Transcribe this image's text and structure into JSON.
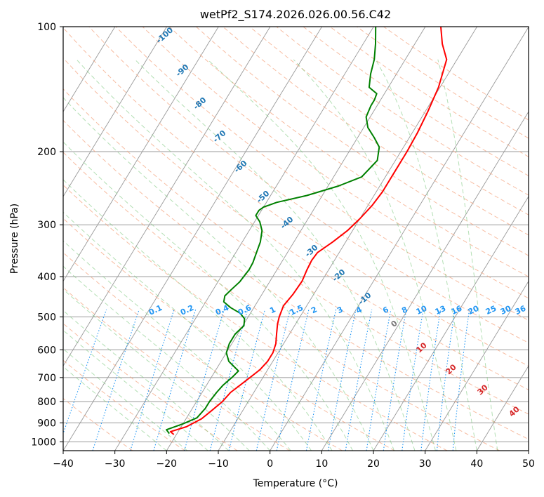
{
  "chart_data": {
    "type": "line",
    "title": "wetPf2_S174.2026.026.00.56.C42",
    "xlabel": "Temperature (°C)",
    "ylabel": "Pressure (hPa)",
    "xlim": [
      -40,
      50
    ],
    "ylim": [
      1050,
      100
    ],
    "x_ticks": [
      -40,
      -30,
      -20,
      -10,
      0,
      10,
      20,
      30,
      40,
      50
    ],
    "y_ticks": [
      100,
      200,
      300,
      400,
      500,
      600,
      700,
      800,
      900,
      1000
    ],
    "skew_per_decade": 49,
    "series": [
      {
        "name": "Temperature",
        "color": "#ff0000",
        "points": [
          [
            -20.5,
            960
          ],
          [
            -21.5,
            945
          ],
          [
            -19,
            920
          ],
          [
            -17,
            880
          ],
          [
            -16,
            840
          ],
          [
            -15,
            800
          ],
          [
            -14.5,
            760
          ],
          [
            -13.5,
            730
          ],
          [
            -12.5,
            700
          ],
          [
            -11.5,
            670
          ],
          [
            -11,
            640
          ],
          [
            -11,
            610
          ],
          [
            -11.5,
            580
          ],
          [
            -12.5,
            550
          ],
          [
            -13.5,
            520
          ],
          [
            -14,
            500
          ],
          [
            -14.5,
            470
          ],
          [
            -14,
            440
          ],
          [
            -13.8,
            410
          ],
          [
            -14.2,
            385
          ],
          [
            -14.4,
            365
          ],
          [
            -14.2,
            350
          ],
          [
            -12.5,
            330
          ],
          [
            -11,
            310
          ],
          [
            -10,
            290
          ],
          [
            -9.2,
            270
          ],
          [
            -8.8,
            250
          ],
          [
            -8.8,
            225
          ],
          [
            -8.8,
            200
          ],
          [
            -9,
            180
          ],
          [
            -9.5,
            160
          ],
          [
            -10.3,
            140
          ],
          [
            -12,
            120
          ],
          [
            -14.7,
            110
          ],
          [
            -17,
            100
          ]
        ]
      },
      {
        "name": "Dewpoint",
        "color": "#008000",
        "points": [
          [
            -21.5,
            955
          ],
          [
            -22.5,
            935
          ],
          [
            -20,
            905
          ],
          [
            -18,
            875
          ],
          [
            -17.5,
            830
          ],
          [
            -17.5,
            800
          ],
          [
            -17.2,
            760
          ],
          [
            -16.8,
            730
          ],
          [
            -16,
            700
          ],
          [
            -15.5,
            675
          ],
          [
            -18.5,
            640
          ],
          [
            -20,
            610
          ],
          [
            -20.5,
            580
          ],
          [
            -20.5,
            550
          ],
          [
            -19.8,
            525
          ],
          [
            -20.5,
            505
          ],
          [
            -22,
            490
          ],
          [
            -24.5,
            475
          ],
          [
            -26.5,
            460
          ],
          [
            -27,
            445
          ],
          [
            -26.5,
            430
          ],
          [
            -25.8,
            412
          ],
          [
            -25.6,
            398
          ],
          [
            -25.4,
            385
          ],
          [
            -25.5,
            370
          ],
          [
            -26,
            350
          ],
          [
            -26.5,
            330
          ],
          [
            -27.5,
            310
          ],
          [
            -29,
            295
          ],
          [
            -30.5,
            285
          ],
          [
            -30.5,
            277
          ],
          [
            -30,
            272
          ],
          [
            -28,
            265
          ],
          [
            -23,
            255
          ],
          [
            -18,
            242
          ],
          [
            -14.6,
            230
          ],
          [
            -13.5,
            210
          ],
          [
            -14.7,
            195
          ],
          [
            -16.8,
            185
          ],
          [
            -19.2,
            175
          ],
          [
            -20.8,
            165
          ],
          [
            -21.2,
            155
          ],
          [
            -21.2,
            150
          ],
          [
            -21.5,
            145
          ],
          [
            -23.7,
            140
          ],
          [
            -25,
            130
          ],
          [
            -26,
            120
          ],
          [
            -27.6,
            110
          ],
          [
            -29.6,
            100
          ]
        ]
      }
    ],
    "dry_adiabat_labels": [
      "-100",
      "-90",
      "-80",
      "-70",
      "-60",
      "-50",
      "-40",
      "-30",
      "-20",
      "-10"
    ],
    "moist_adiabat_labels": [
      "0",
      "10",
      "20",
      "30",
      "40"
    ],
    "mixing_ratio_labels": [
      "0.1",
      "0.2",
      "0.4",
      "0.6",
      "1",
      "1.5",
      "2",
      "3",
      "4",
      "6",
      "8",
      "10",
      "13",
      "16",
      "20",
      "25",
      "30",
      "36"
    ],
    "colors": {
      "dry_adiabat": "#f4a582",
      "moist_adiabat": "#74c476",
      "mixing_ratio": "#2196f3",
      "isotherm": "#999999",
      "isobar": "#999999"
    }
  }
}
